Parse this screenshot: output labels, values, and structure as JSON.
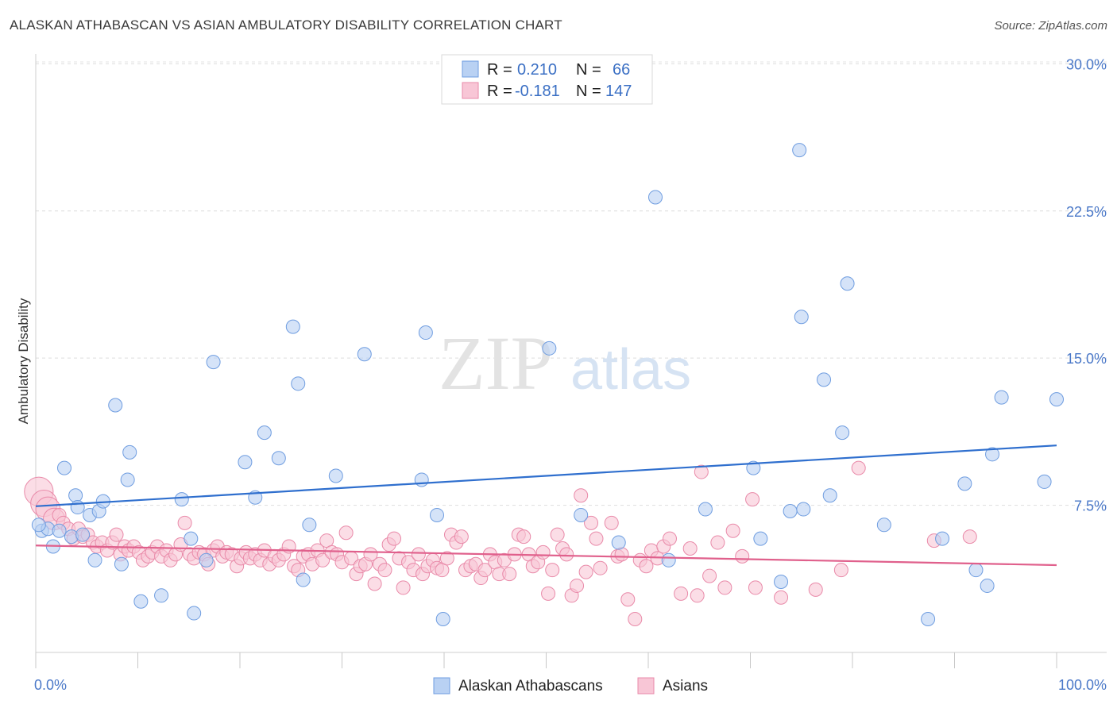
{
  "header": {
    "title": "ALASKAN ATHABASCAN VS ASIAN AMBULATORY DISABILITY CORRELATION CHART",
    "source": "Source: ZipAtlas.com"
  },
  "watermark": {
    "part1": "ZIP",
    "part2": "atlas"
  },
  "colors": {
    "blue_fill": "#b9d1f3",
    "blue_stroke": "#6f9de0",
    "blue_line": "#2f6fce",
    "pink_fill": "#f8c6d6",
    "pink_stroke": "#e98aa9",
    "pink_line": "#e0608c",
    "tick_label": "#4a78c8"
  },
  "legend": {
    "rows": [
      {
        "r_label": "R =",
        "r_value": "0.210",
        "n_label": "N =",
        "n_value": "66",
        "color": "blue"
      },
      {
        "r_label": "R =",
        "r_value": "-0.181",
        "n_label": "N =",
        "n_value": "147",
        "color": "pink"
      }
    ]
  },
  "bottom_legend": [
    "Alaskan Athabascans",
    "Asians"
  ],
  "chart_data": {
    "type": "scatter",
    "title": "ALASKAN ATHABASCAN VS ASIAN AMBULATORY DISABILITY CORRELATION CHART",
    "xlabel": "",
    "ylabel": "Ambulatory Disability",
    "xlim": [
      0,
      100
    ],
    "ylim": [
      0,
      30.5
    ],
    "x_tick_labels": [
      "0.0%",
      "100.0%"
    ],
    "y_ticks": [
      7.5,
      15.0,
      22.5,
      30.0
    ],
    "y_tick_labels": [
      "7.5%",
      "15.0%",
      "22.5%",
      "30.0%"
    ],
    "grid": "horizontal dashed",
    "legend_position": "top-center",
    "series": [
      {
        "name": "Alaskan Athabascans",
        "color": "blue",
        "trend": {
          "x": [
            0,
            100
          ],
          "y": [
            7.45,
            10.55
          ]
        },
        "points": [
          [
            0.6,
            6.2
          ],
          [
            1.2,
            6.3
          ],
          [
            1.7,
            5.4
          ],
          [
            2.3,
            6.2
          ],
          [
            2.8,
            9.4
          ],
          [
            3.5,
            5.9
          ],
          [
            3.9,
            8.0
          ],
          [
            4.1,
            7.4
          ],
          [
            4.6,
            6.0
          ],
          [
            5.3,
            7.0
          ],
          [
            5.8,
            4.7
          ],
          [
            6.2,
            7.2
          ],
          [
            6.6,
            7.7
          ],
          [
            7.8,
            12.6
          ],
          [
            8.4,
            4.5
          ],
          [
            9.0,
            8.8
          ],
          [
            9.2,
            10.2
          ],
          [
            10.3,
            2.6
          ],
          [
            12.3,
            2.9
          ],
          [
            14.3,
            7.8
          ],
          [
            15.2,
            5.8
          ],
          [
            15.5,
            2.0
          ],
          [
            16.7,
            4.7
          ],
          [
            17.4,
            14.8
          ],
          [
            20.5,
            9.7
          ],
          [
            21.5,
            7.9
          ],
          [
            22.4,
            11.2
          ],
          [
            23.8,
            9.9
          ],
          [
            25.2,
            16.6
          ],
          [
            25.7,
            13.7
          ],
          [
            26.2,
            3.7
          ],
          [
            26.8,
            6.5
          ],
          [
            29.4,
            9.0
          ],
          [
            32.2,
            15.2
          ],
          [
            37.8,
            8.8
          ],
          [
            38.2,
            16.3
          ],
          [
            39.3,
            7.0
          ],
          [
            39.9,
            1.7
          ],
          [
            50.3,
            15.5
          ],
          [
            53.4,
            7.0
          ],
          [
            57.1,
            5.6
          ],
          [
            60.7,
            23.2
          ],
          [
            62.0,
            4.7
          ],
          [
            65.6,
            7.3
          ],
          [
            70.3,
            9.4
          ],
          [
            71.0,
            5.8
          ],
          [
            73.0,
            3.6
          ],
          [
            73.9,
            7.2
          ],
          [
            74.8,
            25.6
          ],
          [
            75.0,
            17.1
          ],
          [
            75.2,
            7.3
          ],
          [
            77.2,
            13.9
          ],
          [
            77.8,
            8.0
          ],
          [
            79.0,
            11.2
          ],
          [
            79.5,
            18.8
          ],
          [
            83.1,
            6.5
          ],
          [
            87.4,
            1.7
          ],
          [
            88.8,
            5.8
          ],
          [
            91.0,
            8.6
          ],
          [
            92.1,
            4.2
          ],
          [
            93.2,
            3.4
          ],
          [
            93.7,
            10.1
          ],
          [
            94.6,
            13.0
          ],
          [
            98.8,
            8.7
          ],
          [
            100.0,
            12.9
          ],
          [
            0.3,
            6.5
          ]
        ]
      },
      {
        "name": "Asians",
        "color": "pink",
        "trend": {
          "x": [
            0,
            100
          ],
          "y": [
            5.45,
            4.45
          ]
        },
        "points": [
          [
            0.3,
            8.2
          ],
          [
            0.8,
            7.6
          ],
          [
            1.2,
            7.3
          ],
          [
            1.8,
            6.8
          ],
          [
            2.3,
            7.0
          ],
          [
            2.7,
            6.6
          ],
          [
            3.2,
            6.3
          ],
          [
            3.7,
            5.8
          ],
          [
            4.2,
            6.3
          ],
          [
            4.6,
            5.9
          ],
          [
            5.1,
            6.0
          ],
          [
            5.6,
            5.6
          ],
          [
            6.0,
            5.4
          ],
          [
            6.5,
            5.6
          ],
          [
            7.0,
            5.2
          ],
          [
            7.5,
            5.6
          ],
          [
            7.9,
            6.0
          ],
          [
            8.3,
            5.0
          ],
          [
            8.7,
            5.4
          ],
          [
            9.1,
            5.2
          ],
          [
            9.6,
            5.4
          ],
          [
            10.1,
            5.1
          ],
          [
            10.5,
            4.7
          ],
          [
            11.0,
            4.9
          ],
          [
            11.4,
            5.1
          ],
          [
            11.9,
            5.4
          ],
          [
            12.3,
            4.9
          ],
          [
            12.8,
            5.2
          ],
          [
            13.2,
            4.7
          ],
          [
            13.7,
            5.0
          ],
          [
            14.2,
            5.5
          ],
          [
            14.6,
            6.6
          ],
          [
            15.1,
            5.0
          ],
          [
            15.5,
            4.8
          ],
          [
            16.0,
            5.1
          ],
          [
            16.5,
            5.0
          ],
          [
            16.9,
            4.5
          ],
          [
            17.4,
            5.2
          ],
          [
            17.8,
            5.4
          ],
          [
            18.3,
            4.9
          ],
          [
            18.7,
            5.1
          ],
          [
            19.2,
            5.0
          ],
          [
            19.7,
            4.4
          ],
          [
            20.1,
            4.8
          ],
          [
            20.6,
            5.1
          ],
          [
            21.0,
            4.8
          ],
          [
            21.5,
            5.0
          ],
          [
            22.0,
            4.7
          ],
          [
            22.4,
            5.2
          ],
          [
            22.9,
            4.5
          ],
          [
            23.4,
            4.9
          ],
          [
            23.8,
            4.7
          ],
          [
            24.3,
            5.0
          ],
          [
            24.8,
            5.4
          ],
          [
            25.3,
            4.4
          ],
          [
            25.7,
            4.2
          ],
          [
            26.2,
            4.9
          ],
          [
            26.7,
            5.0
          ],
          [
            27.1,
            4.5
          ],
          [
            27.6,
            5.2
          ],
          [
            28.1,
            4.7
          ],
          [
            28.5,
            5.7
          ],
          [
            29.0,
            5.1
          ],
          [
            29.5,
            5.0
          ],
          [
            30.0,
            4.6
          ],
          [
            30.4,
            6.1
          ],
          [
            30.9,
            4.8
          ],
          [
            31.4,
            4.0
          ],
          [
            31.8,
            4.4
          ],
          [
            32.3,
            4.5
          ],
          [
            32.8,
            5.0
          ],
          [
            33.2,
            3.5
          ],
          [
            33.7,
            4.5
          ],
          [
            34.2,
            4.2
          ],
          [
            34.6,
            5.5
          ],
          [
            35.1,
            5.8
          ],
          [
            35.6,
            4.8
          ],
          [
            36.0,
            3.3
          ],
          [
            36.5,
            4.6
          ],
          [
            37.0,
            4.2
          ],
          [
            37.5,
            5.0
          ],
          [
            37.9,
            4.0
          ],
          [
            38.4,
            4.4
          ],
          [
            38.9,
            4.7
          ],
          [
            39.3,
            4.3
          ],
          [
            39.8,
            4.2
          ],
          [
            40.3,
            4.8
          ],
          [
            40.7,
            6.0
          ],
          [
            41.2,
            5.6
          ],
          [
            41.7,
            5.9
          ],
          [
            42.1,
            4.2
          ],
          [
            42.6,
            4.4
          ],
          [
            43.1,
            4.5
          ],
          [
            43.6,
            3.8
          ],
          [
            44.0,
            4.2
          ],
          [
            44.5,
            5.0
          ],
          [
            45.0,
            4.6
          ],
          [
            45.4,
            4.0
          ],
          [
            45.9,
            4.7
          ],
          [
            46.4,
            4.0
          ],
          [
            46.9,
            5.0
          ],
          [
            47.3,
            6.0
          ],
          [
            47.8,
            5.9
          ],
          [
            48.3,
            5.0
          ],
          [
            48.7,
            4.4
          ],
          [
            49.2,
            4.6
          ],
          [
            49.7,
            5.1
          ],
          [
            50.2,
            3.0
          ],
          [
            50.6,
            4.2
          ],
          [
            51.1,
            6.0
          ],
          [
            51.6,
            5.3
          ],
          [
            52.0,
            5.0
          ],
          [
            52.5,
            2.9
          ],
          [
            53.0,
            3.4
          ],
          [
            53.4,
            8.0
          ],
          [
            53.9,
            4.1
          ],
          [
            54.4,
            6.6
          ],
          [
            54.9,
            5.8
          ],
          [
            55.3,
            4.3
          ],
          [
            56.4,
            6.6
          ],
          [
            57.0,
            4.9
          ],
          [
            57.4,
            5.0
          ],
          [
            58.0,
            2.7
          ],
          [
            58.7,
            1.7
          ],
          [
            59.2,
            4.7
          ],
          [
            59.8,
            4.4
          ],
          [
            60.3,
            5.2
          ],
          [
            60.9,
            4.8
          ],
          [
            61.5,
            5.4
          ],
          [
            62.1,
            5.8
          ],
          [
            63.2,
            3.0
          ],
          [
            64.1,
            5.3
          ],
          [
            65.2,
            9.2
          ],
          [
            66.0,
            3.9
          ],
          [
            66.8,
            5.6
          ],
          [
            67.5,
            3.3
          ],
          [
            68.3,
            6.2
          ],
          [
            69.2,
            4.9
          ],
          [
            70.2,
            7.8
          ],
          [
            73.0,
            2.8
          ],
          [
            76.4,
            3.2
          ],
          [
            78.9,
            4.2
          ],
          [
            80.6,
            9.4
          ],
          [
            88.0,
            5.7
          ],
          [
            91.5,
            5.9
          ],
          [
            70.5,
            3.3
          ],
          [
            64.8,
            2.9
          ]
        ]
      }
    ]
  }
}
